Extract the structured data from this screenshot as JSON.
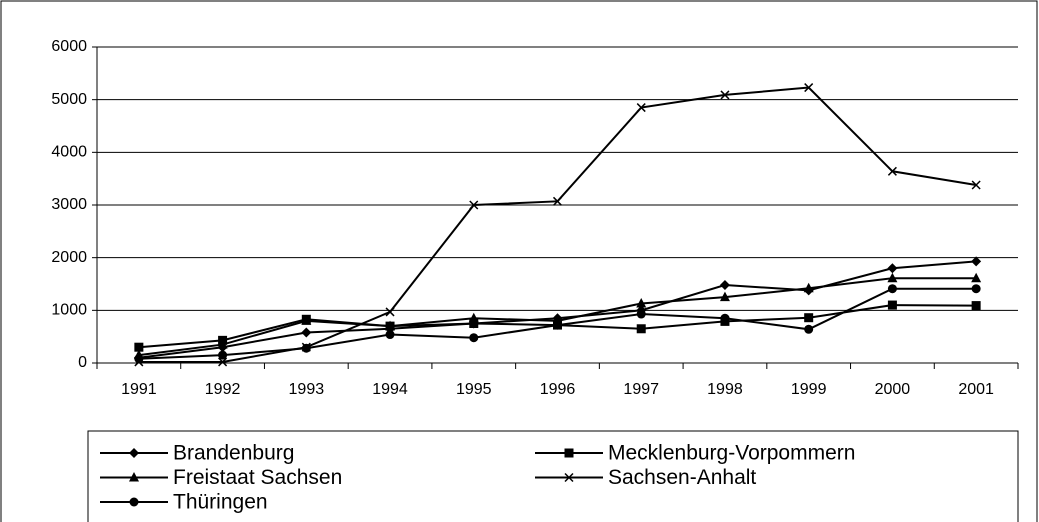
{
  "chart_data": {
    "type": "line",
    "categories": [
      "1991",
      "1992",
      "1993",
      "1994",
      "1995",
      "1996",
      "1997",
      "1998",
      "1999",
      "2000",
      "2001"
    ],
    "series": [
      {
        "name": "Brandenburg",
        "color": "#000000",
        "marker": "diamond",
        "values": [
          100,
          300,
          580,
          650,
          750,
          850,
          1000,
          1480,
          1380,
          1800,
          1930
        ]
      },
      {
        "name": "Mecklenburg-Vorpommern",
        "color": "#000000",
        "marker": "square",
        "values": [
          300,
          430,
          830,
          700,
          750,
          720,
          650,
          790,
          860,
          1100,
          1090
        ]
      },
      {
        "name": "Freistaat Sachsen",
        "color": "#000000",
        "marker": "triangle",
        "values": [
          150,
          350,
          800,
          700,
          850,
          800,
          1130,
          1250,
          1420,
          1610,
          1610
        ]
      },
      {
        "name": "Sachsen-Anhalt",
        "color": "#000000",
        "marker": "x",
        "values": [
          20,
          20,
          300,
          970,
          3000,
          3070,
          4850,
          5090,
          5230,
          3640,
          3380
        ]
      },
      {
        "name": "Thüringen",
        "color": "#000000",
        "marker": "circle",
        "values": [
          80,
          150,
          280,
          540,
          480,
          720,
          930,
          850,
          640,
          1410,
          1410
        ]
      }
    ],
    "ylim": [
      0,
      6000
    ],
    "yticks": [
      0,
      1000,
      2000,
      3000,
      4000,
      5000,
      6000
    ],
    "grid": true
  }
}
